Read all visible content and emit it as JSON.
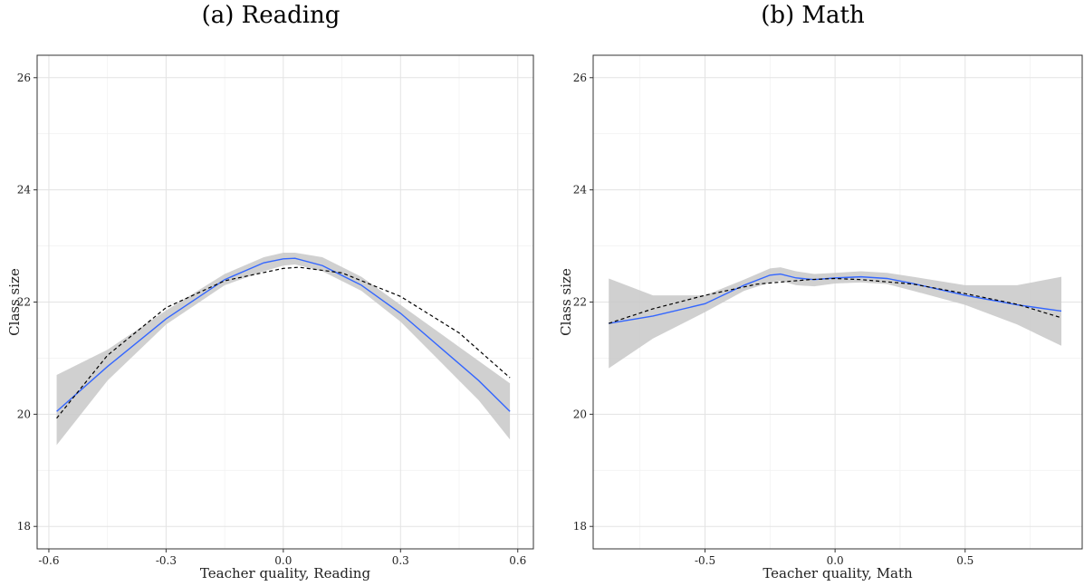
{
  "chart_data": [
    {
      "type": "line",
      "title": "(a) Reading",
      "xlabel": "Teacher quality, Reading",
      "ylabel": "Class size",
      "xlim": [
        -0.63,
        0.64
      ],
      "ylim": [
        17.6,
        26.4
      ],
      "xticks": [
        -0.6,
        -0.3,
        0.0,
        0.3,
        0.6
      ],
      "xtick_labels": [
        "-0.6",
        "-0.3",
        "0.0",
        "0.3",
        "0.6"
      ],
      "yticks": [
        18,
        20,
        22,
        24,
        26
      ],
      "ytick_labels": [
        "18",
        "20",
        "22",
        "24",
        "26"
      ],
      "grid": true,
      "colors": {
        "smooth": "#3366ff",
        "band": "#c8c8c8",
        "quadratic": "#000000"
      },
      "series": [
        {
          "style": "solid",
          "x": [
            -0.58,
            -0.45,
            -0.3,
            -0.15,
            -0.05,
            0.0,
            0.03,
            0.1,
            0.2,
            0.3,
            0.4,
            0.5,
            0.58
          ],
          "y": [
            20.05,
            20.85,
            21.7,
            22.4,
            22.7,
            22.77,
            22.78,
            22.65,
            22.3,
            21.8,
            21.2,
            20.6,
            20.05
          ],
          "lower": [
            19.45,
            20.6,
            21.6,
            22.3,
            22.55,
            22.65,
            22.67,
            22.55,
            22.2,
            21.65,
            20.95,
            20.25,
            19.55
          ],
          "upper": [
            20.7,
            21.15,
            21.85,
            22.5,
            22.8,
            22.88,
            22.88,
            22.8,
            22.45,
            21.95,
            21.45,
            20.95,
            20.55
          ]
        },
        {
          "style": "dashed",
          "x": [
            -0.58,
            -0.45,
            -0.3,
            -0.15,
            0.0,
            0.04,
            0.15,
            0.3,
            0.45,
            0.58
          ],
          "y": [
            19.93,
            21.05,
            21.9,
            22.38,
            22.6,
            22.62,
            22.52,
            22.1,
            21.45,
            20.65
          ]
        }
      ]
    },
    {
      "type": "line",
      "title": "(b) Math",
      "xlabel": "Teacher quality, Math",
      "ylabel": "Class size",
      "xlim": [
        -0.93,
        0.95
      ],
      "ylim": [
        17.6,
        26.4
      ],
      "xticks": [
        -0.5,
        0.0,
        0.5
      ],
      "xtick_labels": [
        "-0.5",
        "0.0",
        "0.5"
      ],
      "yticks": [
        18,
        20,
        22,
        24,
        26
      ],
      "ytick_labels": [
        "18",
        "20",
        "22",
        "24",
        "26"
      ],
      "grid": true,
      "colors": {
        "smooth": "#3366ff",
        "band": "#c8c8c8",
        "quadratic": "#000000"
      },
      "series": [
        {
          "style": "solid",
          "x": [
            -0.87,
            -0.7,
            -0.5,
            -0.35,
            -0.25,
            -0.21,
            -0.15,
            -0.08,
            0.0,
            0.1,
            0.2,
            0.3,
            0.5,
            0.7,
            0.87
          ],
          "y": [
            21.62,
            21.75,
            21.97,
            22.3,
            22.48,
            22.5,
            22.43,
            22.4,
            22.43,
            22.45,
            22.42,
            22.33,
            22.12,
            21.95,
            21.84
          ],
          "lower": [
            20.82,
            21.35,
            21.82,
            22.2,
            22.35,
            22.38,
            22.3,
            22.28,
            22.33,
            22.35,
            22.32,
            22.2,
            21.95,
            21.6,
            21.22
          ],
          "upper": [
            22.42,
            22.12,
            22.12,
            22.4,
            22.6,
            22.62,
            22.55,
            22.5,
            22.52,
            22.55,
            22.52,
            22.45,
            22.3,
            22.3,
            22.45
          ]
        },
        {
          "style": "dashed",
          "x": [
            -0.87,
            -0.7,
            -0.5,
            -0.3,
            -0.1,
            0.0,
            0.1,
            0.3,
            0.5,
            0.7,
            0.87
          ],
          "y": [
            21.62,
            21.88,
            22.12,
            22.32,
            22.4,
            22.42,
            22.4,
            22.32,
            22.15,
            21.96,
            21.72
          ]
        }
      ]
    }
  ]
}
